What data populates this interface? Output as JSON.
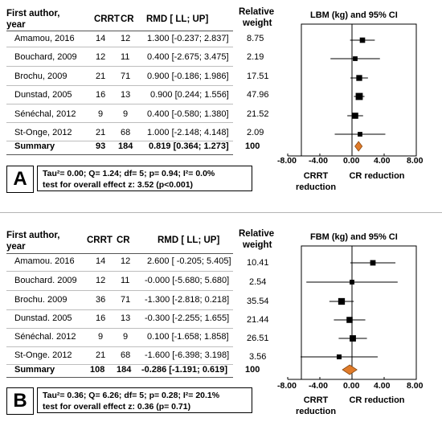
{
  "columns": {
    "author": "First author,",
    "author2": "year",
    "crrt": "CRRT",
    "cr": "CR",
    "rmd": "RMD [ LL; UP]",
    "weight": "Relative",
    "weight2": "weight"
  },
  "panels": [
    {
      "letter": "A",
      "plot_title": "LBM (kg) and 95% CI",
      "rows": [
        {
          "author": "Amamou, 2016",
          "crrt": "14",
          "cr": "12",
          "rmd": "1.300 [-0.237; 2.837]",
          "weight": "8.75"
        },
        {
          "author": "Bouchard, 2009",
          "crrt": "12",
          "cr": "11",
          "rmd": "0.400 [-2.675; 3.475]",
          "weight": "2.19"
        },
        {
          "author": "Brochu, 2009",
          "crrt": "21",
          "cr": "71",
          "rmd": "0.900 [-0.186; 1.986]",
          "weight": "17.51"
        },
        {
          "author": "Dunstad, 2005",
          "crrt": "16",
          "cr": "13",
          "rmd": "0.900 [0.244; 1.556]",
          "weight": "47.96"
        },
        {
          "author": "Sénéchal, 2012",
          "crrt": "9",
          "cr": "9",
          "rmd": "0.400 [-0.580; 1.380]",
          "weight": "21.52"
        },
        {
          "author": "St-Onge, 2012",
          "crrt": "21",
          "cr": "68",
          "rmd": "1.000 [-2.148; 4.148]",
          "weight": "2.09"
        }
      ],
      "summary": {
        "author": "Summary",
        "crrt": "93",
        "cr": "184",
        "rmd": "0.819 [0.364; 1.273]",
        "weight": "100"
      },
      "stat_line1": "Tau²= 0.00; Q= 1.24; df= 5; p= 0.94; I²= 0.0%",
      "stat_line2": "test for overall effect z: 3.52 (p<0.001)",
      "ticks": [
        "-8.00",
        "-4.00",
        "0.00",
        "4.00",
        "8.00"
      ],
      "favor_left": "CRRT reduction",
      "favor_right": "CR reduction"
    },
    {
      "letter": "B",
      "plot_title": "FBM (kg) and 95% CI",
      "rows": [
        {
          "author": "Amamou. 2016",
          "crrt": "14",
          "cr": "12",
          "rmd": "2.600 [ -0.205;  5.405]",
          "weight": "10.41"
        },
        {
          "author": "Bouchard. 2009",
          "crrt": "12",
          "cr": "11",
          "rmd": "-0.000 [-5.680;  5.680]",
          "weight": "2.54"
        },
        {
          "author": "Brochu. 2009",
          "crrt": "36",
          "cr": "71",
          "rmd": "-1.300 [-2.818;  0.218]",
          "weight": "35.54"
        },
        {
          "author": "Dunstad. 2005",
          "crrt": "16",
          "cr": "13",
          "rmd": "-0.300 [-2.255;  1.655]",
          "weight": "21.44"
        },
        {
          "author": "Sénéchal. 2012",
          "crrt": "9",
          "cr": "9",
          "rmd": "0.100 [-1.658;  1.858]",
          "weight": "26.51"
        },
        {
          "author": "St-Onge. 2012",
          "crrt": "21",
          "cr": "68",
          "rmd": "-1.600 [-6.398;  3.198]",
          "weight": "3.56"
        }
      ],
      "summary": {
        "author": "Summary",
        "crrt": "108",
        "cr": "184",
        "rmd": "-0.286 [-1.191;  0.619]",
        "weight": "100"
      },
      "stat_line1": "Tau²= 0.36; Q= 6.26; df= 5; p= 0.28; I²= 20.1%",
      "stat_line2": "test for overall effect z: 0.36 (p= 0.71)",
      "ticks": [
        "-8.00",
        "-4.00",
        "0.00",
        "4.00",
        "8.00"
      ],
      "favor_left": "CRRT reduction",
      "favor_right": "CR reduction"
    }
  ],
  "colors": {
    "summary_diamond": "#e07b2a",
    "summary_diamond_edge": "#8a4a12",
    "row_line": "#bdbdbd"
  },
  "chart_data": [
    {
      "type": "forest",
      "title": "LBM (kg) and 95% CI",
      "xlim": [
        -8,
        8
      ],
      "xticks": [
        -8,
        -4,
        0,
        4,
        8
      ],
      "categories": [
        "Amamou, 2016",
        "Bouchard, 2009",
        "Brochu, 2009",
        "Dunstad, 2005",
        "Sénéchal, 2012",
        "St-Onge, 2012",
        "Summary"
      ],
      "estimate": [
        1.3,
        0.4,
        0.9,
        0.9,
        0.4,
        1.0,
        0.819
      ],
      "lower": [
        -0.237,
        -2.675,
        -0.186,
        0.244,
        -0.58,
        -2.148,
        0.364
      ],
      "upper": [
        2.837,
        3.475,
        1.986,
        1.556,
        1.38,
        4.148,
        1.273
      ],
      "weight": [
        8.75,
        2.19,
        17.51,
        47.96,
        21.52,
        2.09,
        100
      ]
    },
    {
      "type": "forest",
      "title": "FBM (kg) and 95% CI",
      "xlim": [
        -8,
        8
      ],
      "xticks": [
        -8,
        -4,
        0,
        4,
        8
      ],
      "categories": [
        "Amamou. 2016",
        "Bouchard. 2009",
        "Brochu. 2009",
        "Dunstad. 2005",
        "Sénéchal. 2012",
        "St-Onge. 2012",
        "Summary"
      ],
      "estimate": [
        2.6,
        -0.0,
        -1.3,
        -0.3,
        0.1,
        -1.6,
        -0.286
      ],
      "lower": [
        -0.205,
        -5.68,
        -2.818,
        -2.255,
        -1.658,
        -6.398,
        -1.191
      ],
      "upper": [
        5.405,
        5.68,
        0.218,
        1.655,
        1.858,
        3.198,
        0.619
      ],
      "weight": [
        10.41,
        2.54,
        35.54,
        21.44,
        26.51,
        3.56,
        100
      ]
    }
  ]
}
